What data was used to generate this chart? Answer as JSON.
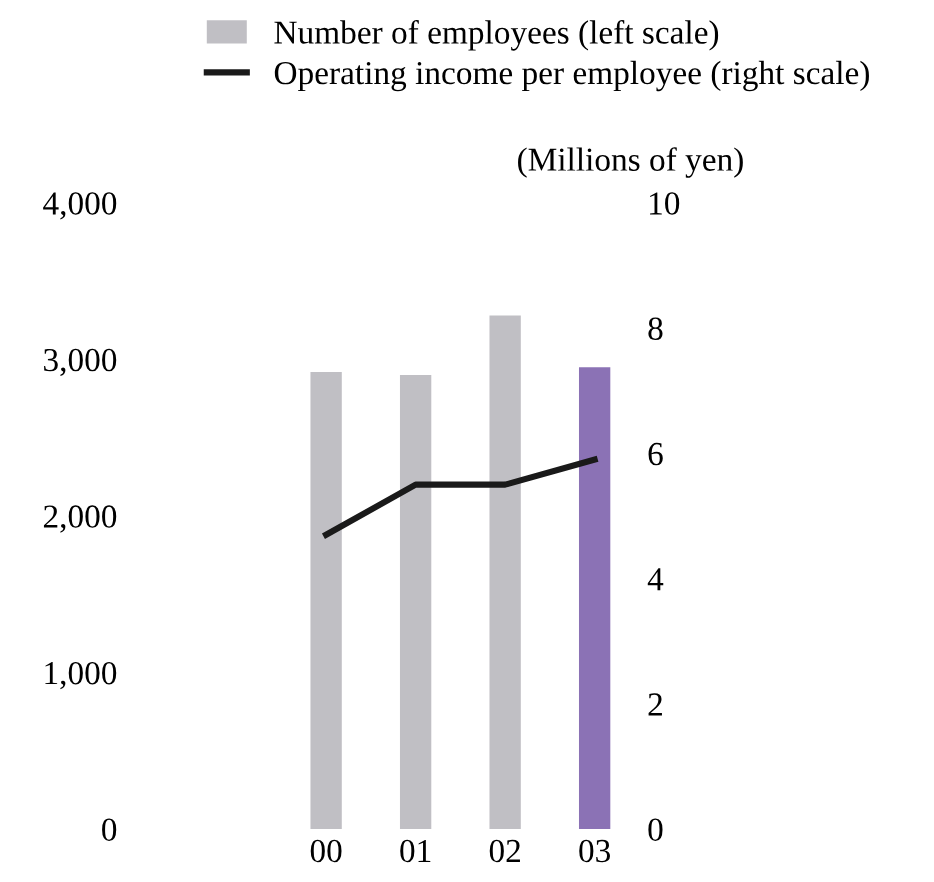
{
  "chart_data": {
    "type": "bar",
    "categories": [
      "00",
      "01",
      "02",
      "03"
    ],
    "series": [
      {
        "name": "Number of employees (left scale)",
        "colors": [
          "#c0bfc4",
          "#c0bfc4",
          "#c0bfc4",
          "#8b72b5"
        ],
        "color": "#c0bfc4",
        "values": [
          2920,
          2900,
          3280,
          2950
        ]
      },
      {
        "name": "Operating income per employee (right scale)",
        "type": "line",
        "axis": "y2",
        "color": "#1a1a1a",
        "values": [
          4.7,
          5.5,
          5.5,
          5.9
        ]
      }
    ],
    "y2label": "(Millions of yen)",
    "ylim": [
      0,
      4000
    ],
    "yticks": [
      {
        "value": 0,
        "label": "0"
      },
      {
        "value": 1000,
        "label": "1,000"
      },
      {
        "value": 2000,
        "label": "2,000"
      },
      {
        "value": 3000,
        "label": "3,000"
      },
      {
        "value": 4000,
        "label": "4,000"
      }
    ],
    "y2lim": [
      0,
      10
    ],
    "y2ticks": [
      0,
      2,
      4,
      6,
      8,
      10
    ],
    "legend": "top",
    "grid": false,
    "marker": "none",
    "line_style": "solid"
  }
}
